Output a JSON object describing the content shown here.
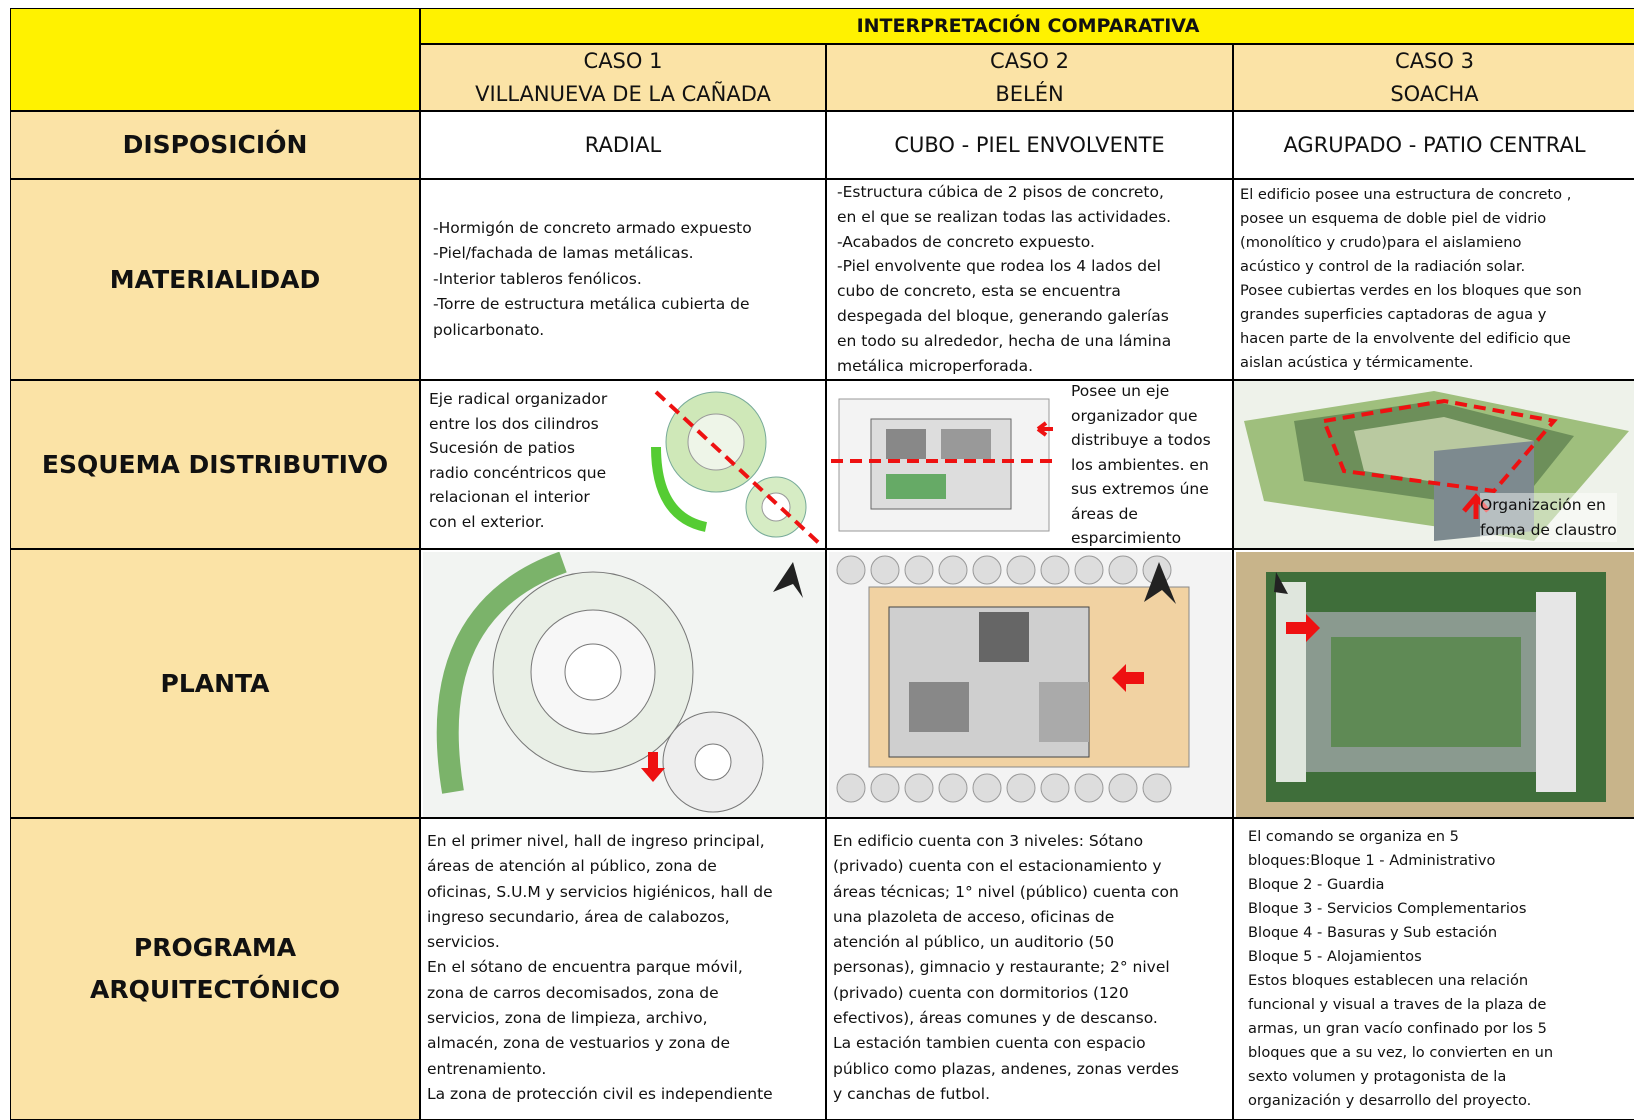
{
  "title": "INTERPRETACIÓN COMPARATIVA",
  "cases": [
    {
      "number": "CASO 1",
      "name": "VILLANUEVA DE LA CAÑADA"
    },
    {
      "number": "CASO 2",
      "name": "BELÉN"
    },
    {
      "number": "CASO 3",
      "name": "SOACHA"
    }
  ],
  "rows": [
    {
      "label": [
        "DISPOSICIÓN"
      ],
      "cells": [
        [
          "RADIAL"
        ],
        [
          "CUBO - PIEL ENVOLVENTE"
        ],
        [
          "AGRUPADO - PATIO CENTRAL"
        ]
      ]
    },
    {
      "label": [
        "MATERIALIDAD"
      ],
      "cells": [
        [
          "-Hormigón de concreto armado expuesto",
          "-Piel/fachada de lamas metálicas.",
          "-Interior tableros fenólicos.",
          "-Torre de estructura metálica cubierta de",
          "policarbonato."
        ],
        [
          "-Estructura cúbica de 2 pisos de concreto,",
          "en el que se realizan todas las actividades.",
          "-Acabados de concreto expuesto.",
          "-Piel envolvente que rodea los 4 lados del",
          "cubo de concreto, esta se encuentra",
          "despegada del bloque, generando galerías",
          "en todo su alrededor, hecha de una lámina",
          "metálica microperforada."
        ],
        [
          "El edificio posee una estructura de concreto ,",
          "posee un esquema de doble piel de vidrio",
          "(monolítico  y crudo)para el aislamieno",
          "acústico y control de la radiación solar.",
          "Posee cubiertas verdes en los bloques que son",
          "grandes superficies captadoras de agua y",
          "hacen parte de la envolvente del edificio que",
          "aislan acústica y térmicamente."
        ]
      ]
    },
    {
      "label": [
        "ESQUEMA DISTRIBUTIVO"
      ],
      "cells": [
        [
          "Eje radical organizador",
          "entre los dos cilindros",
          "Sucesión de patios",
          "radio concéntricos que",
          "relacionan el interior",
          "con el exterior."
        ],
        [
          "Posee un eje",
          "organizador que",
          "distribuye a todos",
          "los ambientes. en",
          "sus extremos úne",
          "áreas de",
          "esparcimiento"
        ],
        [
          "Organización en",
          "forma de claustro"
        ]
      ]
    },
    {
      "label": [
        "PLANTA"
      ]
    },
    {
      "label": [
        "PROGRAMA",
        "ARQUITECTÓNICO"
      ],
      "cells": [
        [
          "En el primer nivel, hall de ingreso principal,",
          "áreas de atención al público, zona de",
          "oficinas, S.U.M y servicios higiénicos, hall de",
          "ingreso secundario, área de calabozos,",
          "servicios.",
          "En el sótano de encuentra parque móvil,",
          "zona de carros decomisados, zona de",
          "servicios, zona de limpieza, archivo,",
          "almacén, zona de vestuarios y zona de",
          "entrenamiento.",
          "La zona de protección civil es independiente"
        ],
        [
          "En edificio cuenta con 3 niveles: Sótano",
          "(privado) cuenta con el estacionamiento y",
          "áreas técnicas; 1° nivel (público) cuenta con",
          "una plazoleta de acceso, oficinas de",
          "atención al público, un auditorio (50",
          "personas), gimnacio y restaurante; 2° nivel",
          "(privado) cuenta con dormitorios (120",
          "efectivos), áreas comunes y de descanso.",
          "La estación tambien cuenta con espacio",
          "público como plazas, andenes, zonas verdes",
          "y canchas de futbol."
        ],
        [
          "El comando se organiza en 5",
          "bloques:Bloque 1 - Administrativo",
          "Bloque 2 - Guardia",
          "Bloque 3 - Servicios Complementarios",
          "Bloque 4 - Basuras y Sub estación",
          "Bloque 5 - Alojamientos",
          "Estos bloques establecen una relación",
          "funcional y visual a traves de la plaza de",
          "armas, un gran vacío confinado por los 5",
          "bloques que a su vez, lo convierten en un",
          "sexto volumen y protagonista de la",
          "organización y desarrollo del proyecto."
        ]
      ]
    }
  ]
}
